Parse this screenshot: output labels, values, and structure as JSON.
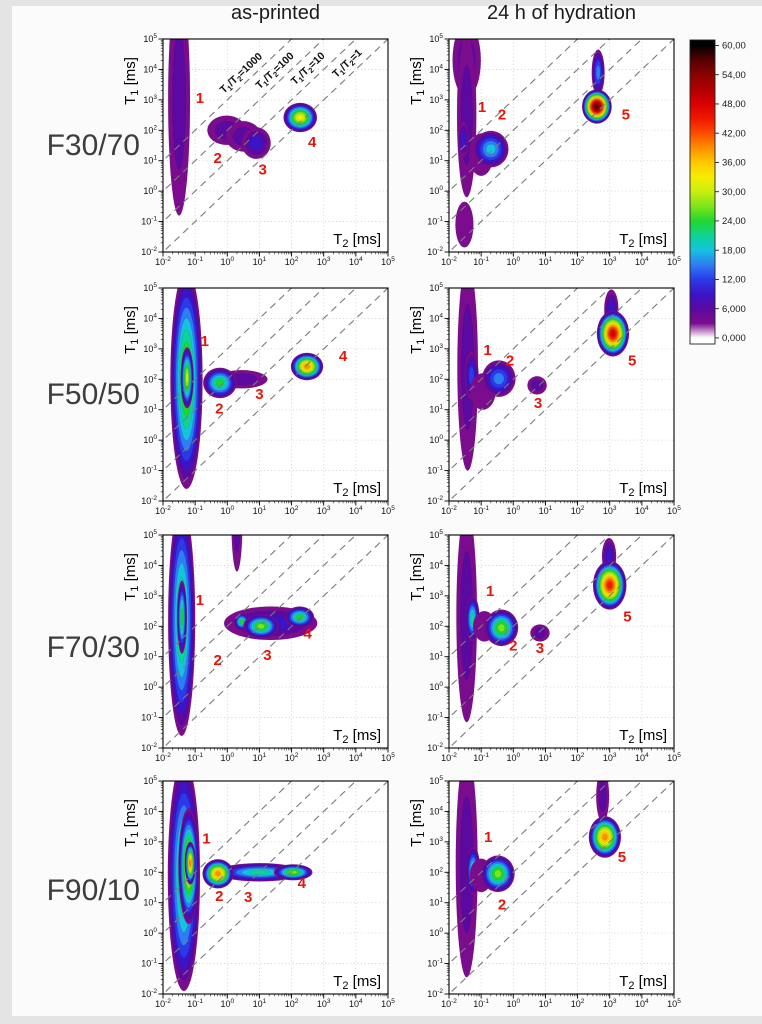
{
  "page": {
    "background": "#fbfbfb",
    "edge_strip_color": "#e4e4e4",
    "accent_red": "#e8150b"
  },
  "header": {
    "column_titles": [
      "as-printed",
      "24 h of hydration"
    ]
  },
  "rows": {
    "labels": [
      "F30/70",
      "F50/50",
      "F70/30",
      "F90/10"
    ]
  },
  "chart_data": {
    "type": "heatmap",
    "description": "T1-T2 NMR relaxation correlation contour maps for four ink formulations (rows) in two states (columns), with numbered peaks and T1/T2 ratio diagonals",
    "x_axis": {
      "label": "T2 [ms]",
      "base": "T",
      "sub": "2",
      "unit": " [ms]",
      "min_exp": -2,
      "max_exp": 5
    },
    "y_axis": {
      "label": "T1 [ms]",
      "base": "T",
      "sub": "1",
      "unit": " [ms]",
      "min_exp": -2,
      "max_exp": 5
    },
    "tick_exponents": [
      -2,
      -1,
      0,
      1,
      2,
      3,
      4,
      5
    ],
    "intensity_scale": {
      "min": 0,
      "max": 60,
      "contour_step": 3
    },
    "colormap": [
      [
        0,
        "#ffffff"
      ],
      [
        3,
        "#7c0c8e"
      ],
      [
        6,
        "#5a0aa0"
      ],
      [
        9,
        "#3b14c8"
      ],
      [
        12,
        "#2b3ae8"
      ],
      [
        15,
        "#2e7df2"
      ],
      [
        18,
        "#15c2e0"
      ],
      [
        21,
        "#0ed492"
      ],
      [
        24,
        "#22d62e"
      ],
      [
        27,
        "#7ce61a"
      ],
      [
        30,
        "#c8ee10"
      ],
      [
        33,
        "#f4ee00"
      ],
      [
        36,
        "#ffc800"
      ],
      [
        39,
        "#ff8e00"
      ],
      [
        42,
        "#fb4b00"
      ],
      [
        45,
        "#f01800"
      ],
      [
        48,
        "#d90000"
      ],
      [
        51,
        "#b00000"
      ],
      [
        54,
        "#8a0202"
      ],
      [
        57,
        "#570000"
      ],
      [
        60,
        "#000000"
      ]
    ],
    "colorbar": {
      "tick_values": [
        60,
        54,
        48,
        42,
        36,
        30,
        24,
        18,
        12,
        6,
        0
      ],
      "tick_labels": [
        "60,00",
        "54,00",
        "48,00",
        "42,00",
        "36,00",
        "30,00",
        "24,00",
        "18,00",
        "12,00",
        "6,000",
        "0,000"
      ]
    },
    "ratio_lines": [
      {
        "k": 3,
        "value": "1000",
        "anchor": [
          0.5,
          3.8
        ]
      },
      {
        "k": 2,
        "value": "100",
        "anchor": [
          1.55,
          3.88
        ]
      },
      {
        "k": 1,
        "value": "10",
        "anchor": [
          2.58,
          3.95
        ]
      },
      {
        "k": 0,
        "value": "1",
        "anchor": [
          3.8,
          4.12
        ]
      }
    ],
    "plots": [
      {
        "sample": "F30/70",
        "state": "as-printed",
        "row": 0,
        "col": 0,
        "show_ratio_labels": true,
        "blobs": [
          {
            "cx": -1.5,
            "cy": 3.0,
            "rx": 0.34,
            "ry": 3.8,
            "v": 7
          },
          {
            "cx": -0.02,
            "cy": 2.0,
            "rx": 0.6,
            "ry": 0.48,
            "v": 7
          },
          {
            "cx": 0.5,
            "cy": 1.8,
            "rx": 0.55,
            "ry": 0.5,
            "v": 6
          },
          {
            "cx": 0.9,
            "cy": 1.58,
            "rx": 0.45,
            "ry": 0.52,
            "v": 10
          },
          {
            "cx": 2.27,
            "cy": 2.42,
            "rx": 0.52,
            "ry": 0.48,
            "v": 33
          }
        ],
        "peak_labels": [
          {
            "t": "1",
            "x": -0.85,
            "y": 2.9
          },
          {
            "t": "2",
            "x": -0.3,
            "y": 0.93
          },
          {
            "t": "3",
            "x": 1.1,
            "y": 0.55
          },
          {
            "t": "4",
            "x": 2.64,
            "y": 1.45
          }
        ]
      },
      {
        "sample": "F30/70",
        "state": "24 h of hydration",
        "row": 0,
        "col": 1,
        "show_ratio_labels": false,
        "blobs": [
          {
            "cx": -1.45,
            "cy": 4.3,
            "rx": 0.44,
            "ry": 1.2,
            "v": 6
          },
          {
            "cx": -1.45,
            "cy": 2.5,
            "rx": 0.3,
            "ry": 2.7,
            "v": 7
          },
          {
            "cx": -1.55,
            "cy": 1.7,
            "rx": 0.16,
            "ry": 0.6,
            "v": 10
          },
          {
            "cx": -1.52,
            "cy": -1.1,
            "rx": 0.28,
            "ry": 0.75,
            "v": 5
          },
          {
            "cx": -1.0,
            "cy": 1.2,
            "rx": 0.38,
            "ry": 0.7,
            "v": 5
          },
          {
            "cx": -0.7,
            "cy": 1.38,
            "rx": 0.55,
            "ry": 0.6,
            "v": 19
          },
          {
            "cx": 2.64,
            "cy": 3.9,
            "rx": 0.2,
            "ry": 0.75,
            "v": 15
          },
          {
            "cx": 2.6,
            "cy": 2.78,
            "rx": 0.46,
            "ry": 0.56,
            "v": 58
          }
        ],
        "peak_labels": [
          {
            "t": "1",
            "x": -0.97,
            "y": 2.6
          },
          {
            "t": "2",
            "x": -0.35,
            "y": 2.35
          },
          {
            "t": "5",
            "x": 3.5,
            "y": 2.35
          }
        ]
      },
      {
        "sample": "F50/50",
        "state": "as-printed",
        "row": 1,
        "col": 0,
        "show_ratio_labels": false,
        "blobs": [
          {
            "cx": -1.27,
            "cy": 2.0,
            "rx": 0.5,
            "ry": 3.6,
            "v": 27
          },
          {
            "cx": -1.25,
            "cy": 2.05,
            "rx": 0.2,
            "ry": 1.0,
            "v": 31
          },
          {
            "cx": 0.45,
            "cy": 2.0,
            "rx": 0.8,
            "ry": 0.3,
            "v": 8
          },
          {
            "cx": -0.23,
            "cy": 1.88,
            "rx": 0.52,
            "ry": 0.5,
            "v": 25
          },
          {
            "cx": 2.48,
            "cy": 2.42,
            "rx": 0.5,
            "ry": 0.45,
            "v": 39
          }
        ],
        "peak_labels": [
          {
            "t": "1",
            "x": -0.7,
            "y": 3.1
          },
          {
            "t": "2",
            "x": -0.25,
            "y": 0.88
          },
          {
            "t": "3",
            "x": 1.0,
            "y": 1.35
          },
          {
            "t": "4",
            "x": 3.6,
            "y": 2.6
          }
        ]
      },
      {
        "sample": "F50/50",
        "state": "24 h of hydration",
        "row": 1,
        "col": 1,
        "show_ratio_labels": false,
        "blobs": [
          {
            "cx": -1.42,
            "cy": 2.4,
            "rx": 0.32,
            "ry": 3.4,
            "v": 8
          },
          {
            "cx": -1.3,
            "cy": 2.12,
            "rx": 0.22,
            "ry": 0.8,
            "v": 13
          },
          {
            "cx": -0.95,
            "cy": 1.6,
            "rx": 0.4,
            "ry": 0.6,
            "v": 5
          },
          {
            "cx": -0.45,
            "cy": 2.02,
            "rx": 0.52,
            "ry": 0.6,
            "v": 17
          },
          {
            "cx": 0.74,
            "cy": 1.8,
            "rx": 0.3,
            "ry": 0.3,
            "v": 8
          },
          {
            "cx": 3.05,
            "cy": 4.3,
            "rx": 0.22,
            "ry": 0.65,
            "v": 9
          },
          {
            "cx": 3.1,
            "cy": 3.5,
            "rx": 0.5,
            "ry": 0.75,
            "v": 48
          }
        ],
        "peak_labels": [
          {
            "t": "1",
            "x": -0.8,
            "y": 2.8
          },
          {
            "t": "2",
            "x": -0.1,
            "y": 2.45
          },
          {
            "t": "3",
            "x": 0.77,
            "y": 1.05
          },
          {
            "t": "5",
            "x": 3.7,
            "y": 2.45
          }
        ]
      },
      {
        "sample": "F70/30",
        "state": "as-printed",
        "row": 2,
        "col": 0,
        "show_ratio_labels": false,
        "blobs": [
          {
            "cx": -1.42,
            "cy": 2.2,
            "rx": 0.42,
            "ry": 3.8,
            "v": 24
          },
          {
            "cx": -1.41,
            "cy": 2.3,
            "rx": 0.15,
            "ry": 1.2,
            "v": 26
          },
          {
            "cx": 0.3,
            "cy": 5.4,
            "rx": 0.17,
            "ry": 1.6,
            "v": 7
          },
          {
            "cx": 1.35,
            "cy": 2.1,
            "rx": 1.45,
            "ry": 0.55,
            "v": 9
          },
          {
            "cx": 0.45,
            "cy": 2.15,
            "rx": 0.24,
            "ry": 0.28,
            "v": 24
          },
          {
            "cx": 1.05,
            "cy": 2.0,
            "rx": 0.55,
            "ry": 0.4,
            "v": 27
          },
          {
            "cx": 2.25,
            "cy": 2.3,
            "rx": 0.45,
            "ry": 0.35,
            "v": 25
          }
        ],
        "peak_labels": [
          {
            "t": "1",
            "x": -0.85,
            "y": 2.7
          },
          {
            "t": "2",
            "x": -0.3,
            "y": 0.72
          },
          {
            "t": "3",
            "x": 1.25,
            "y": 0.9
          },
          {
            "t": "4",
            "x": 2.5,
            "y": 1.6
          }
        ]
      },
      {
        "sample": "F70/30",
        "state": "24 h of hydration",
        "row": 2,
        "col": 1,
        "show_ratio_labels": false,
        "blobs": [
          {
            "cx": -1.45,
            "cy": 2.35,
            "rx": 0.32,
            "ry": 3.5,
            "v": 8
          },
          {
            "cx": -1.27,
            "cy": 2.25,
            "rx": 0.22,
            "ry": 0.75,
            "v": 22
          },
          {
            "cx": -0.9,
            "cy": 2.0,
            "rx": 0.35,
            "ry": 0.5,
            "v": 5
          },
          {
            "cx": -0.37,
            "cy": 1.95,
            "rx": 0.52,
            "ry": 0.6,
            "v": 28
          },
          {
            "cx": 0.83,
            "cy": 1.78,
            "rx": 0.3,
            "ry": 0.28,
            "v": 8
          },
          {
            "cx": 2.98,
            "cy": 4.3,
            "rx": 0.22,
            "ry": 0.6,
            "v": 9
          },
          {
            "cx": 3.0,
            "cy": 3.35,
            "rx": 0.52,
            "ry": 0.8,
            "v": 47
          }
        ],
        "peak_labels": [
          {
            "t": "1",
            "x": -0.72,
            "y": 3.0
          },
          {
            "t": "2",
            "x": 0.0,
            "y": 1.2
          },
          {
            "t": "3",
            "x": 0.83,
            "y": 1.12
          },
          {
            "t": "5",
            "x": 3.55,
            "y": 2.15
          }
        ]
      },
      {
        "sample": "F90/10",
        "state": "as-printed",
        "row": 3,
        "col": 0,
        "show_ratio_labels": false,
        "blobs": [
          {
            "cx": -1.35,
            "cy": 1.9,
            "rx": 0.5,
            "ry": 3.8,
            "v": 24
          },
          {
            "cx": -1.2,
            "cy": 2.2,
            "rx": 0.32,
            "ry": 1.9,
            "v": 33
          },
          {
            "cx": -1.15,
            "cy": 2.3,
            "rx": 0.17,
            "ry": 0.7,
            "v": 39
          },
          {
            "cx": 1.0,
            "cy": 2.0,
            "rx": 1.35,
            "ry": 0.3,
            "v": 21
          },
          {
            "cx": 2.05,
            "cy": 2.0,
            "rx": 0.6,
            "ry": 0.26,
            "v": 28
          },
          {
            "cx": -0.29,
            "cy": 1.95,
            "rx": 0.48,
            "ry": 0.48,
            "v": 39
          }
        ],
        "peak_labels": [
          {
            "t": "1",
            "x": -0.65,
            "y": 2.95
          },
          {
            "t": "2",
            "x": -0.25,
            "y": 1.05
          },
          {
            "t": "3",
            "x": 0.65,
            "y": 1.03
          },
          {
            "t": "4",
            "x": 2.32,
            "y": 1.49
          }
        ]
      },
      {
        "sample": "F90/10",
        "state": "24 h of hydration",
        "row": 3,
        "col": 1,
        "show_ratio_labels": false,
        "blobs": [
          {
            "cx": -1.45,
            "cy": 2.25,
            "rx": 0.34,
            "ry": 3.7,
            "v": 8
          },
          {
            "cx": -1.25,
            "cy": 2.05,
            "rx": 0.22,
            "ry": 0.8,
            "v": 22
          },
          {
            "cx": -1.0,
            "cy": 1.9,
            "rx": 0.35,
            "ry": 0.55,
            "v": 5
          },
          {
            "cx": -0.48,
            "cy": 1.95,
            "rx": 0.52,
            "ry": 0.6,
            "v": 27
          },
          {
            "cx": 2.78,
            "cy": 4.5,
            "rx": 0.2,
            "ry": 0.85,
            "v": 6
          },
          {
            "cx": 2.85,
            "cy": 3.16,
            "rx": 0.5,
            "ry": 0.68,
            "v": 41
          }
        ],
        "peak_labels": [
          {
            "t": "1",
            "x": -0.78,
            "y": 3.0
          },
          {
            "t": "2",
            "x": -0.35,
            "y": 0.78
          },
          {
            "t": "5",
            "x": 3.38,
            "y": 2.33
          }
        ]
      }
    ]
  }
}
